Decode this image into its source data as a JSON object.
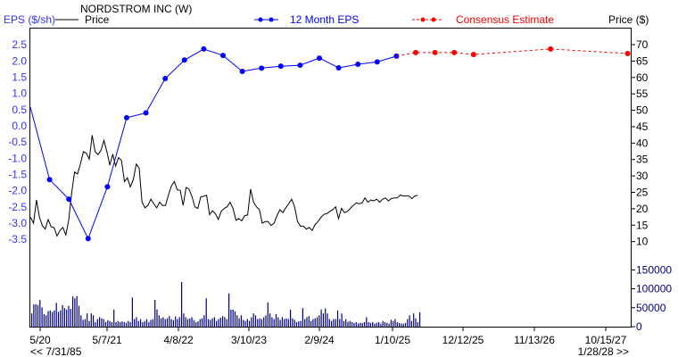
{
  "chart_data": {
    "type": "line",
    "title": "NORDSTROM INC (W)",
    "left_axis": {
      "label": "EPS ($/sh)",
      "ticks": [
        "2.5",
        "2.0",
        "1.5",
        "1.0",
        "0.5",
        "0.0",
        "-0.5",
        "-1.0",
        "-1.5",
        "-2.0",
        "-2.5",
        "-3.0",
        "-3.5"
      ],
      "ylim": [
        -3.5,
        2.5
      ],
      "color": "#3333ff"
    },
    "right_axis": {
      "label": "Price ($)",
      "ticks": [
        "70",
        "65",
        "60",
        "55",
        "50",
        "45",
        "40",
        "35",
        "30",
        "25",
        "20",
        "15",
        "10"
      ],
      "ylim": [
        10,
        70
      ]
    },
    "volume_axis": {
      "ticks": [
        "150000",
        "100000",
        "50000",
        "0"
      ],
      "ylim": [
        0,
        150000
      ],
      "color": "#000080"
    },
    "x_ticks": [
      "5/20",
      "5/7/21",
      "4/8/22",
      "3/10/23",
      "2/9/24",
      "1/10/25",
      "12/12/25",
      "11/13/26",
      "10/15/27"
    ],
    "range_start": "<< 7/31/85",
    "range_end": "1/28/28 >>",
    "grid": false,
    "legend": [
      {
        "name": "Price",
        "color": "#000000",
        "style": "solid"
      },
      {
        "name": "12 Month EPS",
        "color": "#0000ff",
        "style": "solid-dots"
      },
      {
        "name": "Consensus Estimate",
        "color": "#ff0000",
        "style": "dashed-dots"
      }
    ],
    "series": [
      {
        "name": "12 Month EPS",
        "color": "#0000ff",
        "values": [
          0.58,
          -1.66,
          -2.26,
          -3.48,
          -1.88,
          0.25,
          0.4,
          1.46,
          2.03,
          2.37,
          2.17,
          1.68,
          1.78,
          1.84,
          1.87,
          2.09,
          1.79,
          1.9,
          1.97,
          2.15
        ]
      },
      {
        "name": "Consensus Estimate",
        "color": "#ff0000",
        "values": [
          2.26,
          2.26,
          2.26,
          2.2,
          null,
          null,
          null,
          2.37,
          null,
          null,
          null,
          2.23
        ]
      },
      {
        "name": "Price",
        "color": "#000000",
        "values": [
          17.4,
          15.6,
          22.7,
          17.4,
          14.9,
          13.8,
          16.7,
          14.5,
          14.3,
          11.7,
          13.4,
          14.3,
          12.0,
          16.5,
          24.7,
          31.2,
          30.6,
          33.7,
          37.4,
          36.9,
          35.1,
          42.4,
          37.4,
          36.5,
          37.8,
          40.8,
          37.4,
          33.3,
          36.6,
          33.0,
          35.6,
          34.7,
          28.3,
          29.4,
          26.7,
          28.8,
          33.6,
          32.4,
          22.0,
          20.3,
          21.0,
          22.9,
          21.5,
          20.3,
          22.0,
          21.0,
          21.0,
          24.2,
          26.9,
          28.3,
          25.8,
          25.6,
          21.0,
          26.5,
          26.0,
          23.8,
          20.6,
          20.1,
          23.6,
          23.8,
          24.1,
          18.2,
          19.4,
          18.5,
          16.7,
          19.2,
          20.1,
          20.6,
          22.0,
          20.1,
          16.5,
          17.0,
          16.3,
          17.9,
          18.1,
          26.0,
          22.0,
          20.6,
          19.7,
          15.6,
          16.1,
          16.1,
          14.9,
          15.6,
          17.9,
          19.7,
          18.8,
          20.3,
          21.5,
          22.9,
          20.6,
          16.1,
          14.7,
          14.7,
          13.8,
          14.3,
          13.4,
          15.2,
          16.1,
          17.4,
          18.3,
          18.5,
          19.2,
          19.7,
          20.6,
          17.0,
          20.1,
          18.8,
          19.2,
          20.1,
          21.0,
          21.8,
          21.5,
          21.8,
          23.3,
          22.0,
          22.7,
          22.4,
          22.9,
          22.0,
          22.9,
          23.3,
          22.4,
          23.1,
          23.3,
          23.3,
          24.2,
          23.9,
          23.9,
          23.9,
          23.1,
          23.9,
          24.1
        ]
      },
      {
        "name": "Volume",
        "color": "#000080",
        "values": [
          35000,
          59000,
          59000,
          57000,
          71000,
          51000,
          33000,
          30000,
          41000,
          43000,
          39000,
          43000,
          63000,
          39000,
          43000,
          57000,
          49000,
          45000,
          55000,
          47000,
          80000,
          75000,
          81000,
          55000,
          30000,
          18000,
          20000,
          35000,
          15000,
          35000,
          30000,
          12000,
          20000,
          25000,
          22000,
          20000,
          12000,
          17000,
          15000,
          12000,
          45000,
          12000,
          15000,
          12000,
          14000,
          12000,
          10000,
          15000,
          12000,
          77000,
          20000,
          25000,
          15000,
          20000,
          12000,
          15000,
          20000,
          12000,
          18000,
          20000,
          71000,
          45000,
          30000,
          22000,
          25000,
          20000,
          22000,
          28000,
          20000,
          17000,
          27000,
          20000,
          25000,
          118000,
          35000,
          25000,
          20000,
          22000,
          25000,
          17000,
          12000,
          14000,
          20000,
          22000,
          30000,
          75000,
          20000,
          18000,
          22000,
          25000,
          15000,
          20000,
          24000,
          28000,
          25000,
          20000,
          88000,
          45000,
          45000,
          40000,
          30000,
          22000,
          30000,
          18000,
          15000,
          20000,
          15000,
          25000,
          35000,
          30000,
          20000,
          22000,
          20000,
          25000,
          30000,
          64000,
          35000,
          25000,
          20000,
          33000,
          25000,
          18000,
          25000,
          20000,
          22000,
          20000,
          45000,
          22000,
          18000,
          12000,
          14000,
          15000,
          49000,
          20000,
          25000,
          28000,
          15000,
          20000,
          22000,
          25000,
          30000,
          45000,
          35000,
          48000,
          35000,
          20000,
          15000,
          20000,
          20000,
          43000,
          20000,
          35000,
          15000,
          20000,
          13000,
          15000,
          12000,
          10000,
          12000,
          8000,
          10000,
          10000,
          12000,
          25000,
          12000,
          10000,
          12000,
          8000,
          10000,
          12000,
          8000,
          15000,
          12000,
          10000,
          8000,
          18000,
          15000,
          20000,
          12000,
          10000,
          8000,
          8000,
          10000,
          20000,
          30000,
          15000,
          35000,
          22000,
          12000,
          38000
        ]
      }
    ]
  }
}
